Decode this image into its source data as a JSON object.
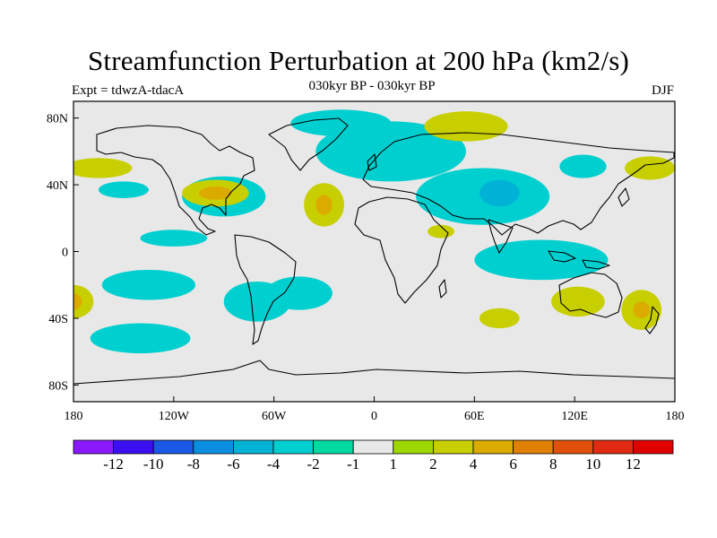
{
  "title": "Streamfunction Perturbation at 200 hPa (km2/s)",
  "subtitle": "030kyr BP - 030kyr BP",
  "left_label": "Expt = tdwzA-tdacA",
  "right_label": "DJF",
  "colors": {
    "background": "#ffffff",
    "map_background": "#e8e8e8",
    "coast": "#000000"
  },
  "chart_data": {
    "type": "heatmap",
    "field": "streamfunction perturbation",
    "units": "km2/s",
    "x_ticks": [
      "180",
      "120W",
      "60W",
      "0",
      "60E",
      "120E",
      "180"
    ],
    "y_ticks": [
      "80N",
      "40N",
      "0",
      "40S",
      "80S"
    ],
    "xlim": [
      -180,
      180
    ],
    "ylim": [
      -90,
      90
    ],
    "colorbar": {
      "labels": [
        "-12",
        "-10",
        "-8",
        "-6",
        "-4",
        "-2",
        "-1",
        "1",
        "2",
        "4",
        "6",
        "8",
        "10",
        "12"
      ],
      "colors": [
        "#8b19ff",
        "#3b0ff0",
        "#1a58e6",
        "#0a8fe0",
        "#00b3d6",
        "#00cfd0",
        "#00d9a0",
        "#e8e8e8",
        "#9ed600",
        "#c8cf00",
        "#dcab00",
        "#e07f00",
        "#e0500a",
        "#e02a12",
        "#e00000"
      ]
    },
    "regions": [
      {
        "lon": 10,
        "lat": 60,
        "rx": 45,
        "ry": 18,
        "level": "-2"
      },
      {
        "lon": 65,
        "lat": 33,
        "rx": 40,
        "ry": 17,
        "level": "-2"
      },
      {
        "lon": 75,
        "lat": 35,
        "rx": 12,
        "ry": 8,
        "level": "-4"
      },
      {
        "lon": 125,
        "lat": 51,
        "rx": 14,
        "ry": 7,
        "level": "-2"
      },
      {
        "lon": 100,
        "lat": -5,
        "rx": 40,
        "ry": 12,
        "level": "-2"
      },
      {
        "lon": -90,
        "lat": 33,
        "rx": 25,
        "ry": 12,
        "level": "-2"
      },
      {
        "lon": -120,
        "lat": 8,
        "rx": 20,
        "ry": 5,
        "level": "-2"
      },
      {
        "lon": -150,
        "lat": 37,
        "rx": 15,
        "ry": 5,
        "level": "-2"
      },
      {
        "lon": -135,
        "lat": -20,
        "rx": 28,
        "ry": 9,
        "level": "-2"
      },
      {
        "lon": -140,
        "lat": -52,
        "rx": 30,
        "ry": 9,
        "level": "-2"
      },
      {
        "lon": -70,
        "lat": -30,
        "rx": 20,
        "ry": 12,
        "level": "-2"
      },
      {
        "lon": -45,
        "lat": -25,
        "rx": 20,
        "ry": 10,
        "level": "-2"
      },
      {
        "lon": -20,
        "lat": 77,
        "rx": 30,
        "ry": 8,
        "level": "-2"
      },
      {
        "lon": 160,
        "lat": -35,
        "rx": 12,
        "ry": 12,
        "level": "2"
      },
      {
        "lon": 165,
        "lat": 50,
        "rx": 15,
        "ry": 7,
        "level": "2"
      },
      {
        "lon": -165,
        "lat": 50,
        "rx": 20,
        "ry": 6,
        "level": "2"
      },
      {
        "lon": -95,
        "lat": 35,
        "rx": 20,
        "ry": 8,
        "level": "2"
      },
      {
        "lon": -30,
        "lat": 28,
        "rx": 12,
        "ry": 13,
        "level": "2"
      },
      {
        "lon": 55,
        "lat": 75,
        "rx": 25,
        "ry": 9,
        "level": "2"
      },
      {
        "lon": 122,
        "lat": -30,
        "rx": 16,
        "ry": 9,
        "level": "2"
      },
      {
        "lon": 40,
        "lat": 12,
        "rx": 8,
        "ry": 4,
        "level": "2"
      },
      {
        "lon": 75,
        "lat": -40,
        "rx": 12,
        "ry": 6,
        "level": "2"
      },
      {
        "lon": -180,
        "lat": -30,
        "rx": 12,
        "ry": 10,
        "level": "2"
      },
      {
        "lon": -95,
        "lat": 35,
        "rx": 10,
        "ry": 4,
        "level": "4"
      },
      {
        "lon": -30,
        "lat": 28,
        "rx": 5,
        "ry": 6,
        "level": "4"
      },
      {
        "lon": 160,
        "lat": -35,
        "rx": 5,
        "ry": 5,
        "level": "4"
      },
      {
        "lon": -180,
        "lat": -30,
        "rx": 5,
        "ry": 5,
        "level": "4"
      }
    ]
  }
}
